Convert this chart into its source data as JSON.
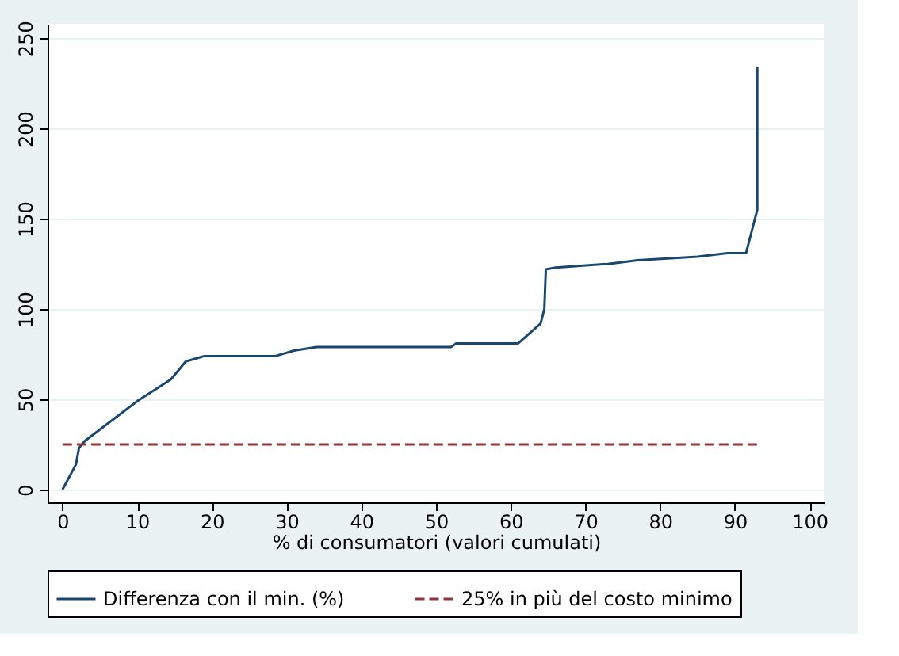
{
  "chart_data": {
    "type": "line",
    "xlabel": "% di consumatori (valori cumulati)",
    "xlim": [
      -2,
      102
    ],
    "xticks": [
      0,
      10,
      20,
      30,
      40,
      50,
      60,
      70,
      80,
      90,
      100
    ],
    "ylim": [
      -7,
      258
    ],
    "yticks": [
      0,
      50,
      100,
      150,
      200,
      250
    ],
    "grid": "y",
    "legend": "bottom",
    "series": [
      {
        "name": "Differenza con il min. (%)",
        "color": "#1a476f",
        "line_style": "solid",
        "x": [
          0,
          1.8,
          2.2,
          3,
          10,
          14.5,
          16.5,
          19,
          28.5,
          31,
          34,
          52,
          52.7,
          61,
          64,
          64.5,
          64.7,
          66,
          73,
          77,
          85,
          89,
          91.5,
          93,
          93
        ],
        "values": [
          0,
          14,
          23,
          27,
          49,
          61,
          71,
          74,
          74,
          77,
          79,
          79,
          81,
          81,
          92,
          100,
          122,
          123,
          125,
          127,
          129,
          131,
          131,
          155,
          234
        ]
      },
      {
        "name": "25% in più del costo minimo",
        "color": "#90353b",
        "line_style": "dashed",
        "x": [
          0,
          93
        ],
        "values": [
          25,
          25
        ]
      }
    ]
  }
}
